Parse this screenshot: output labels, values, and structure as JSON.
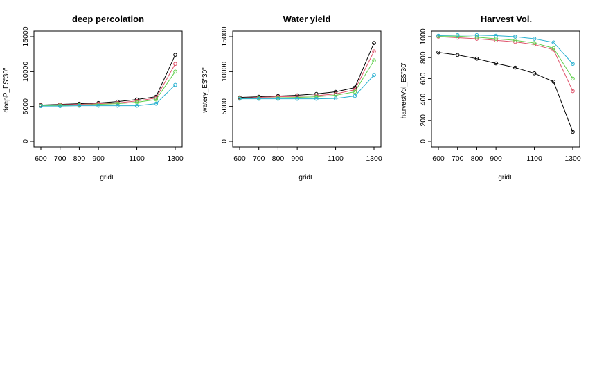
{
  "chart_data": [
    {
      "type": "line",
      "title": "deep percolation",
      "xlabel": "gridE",
      "ylabel": "deepP_E$\"30\"",
      "x": [
        600,
        700,
        800,
        900,
        1000,
        1100,
        1200,
        1300
      ],
      "x_ticks": [
        "600",
        "700",
        "800",
        "900",
        "1100",
        "1300"
      ],
      "y_ticks": [
        "0",
        "5000",
        "10000",
        "15000"
      ],
      "xlim": [
        600,
        1300
      ],
      "ylim": [
        0,
        15000
      ],
      "series": [
        {
          "color": "#000000",
          "values": [
            5200,
            5300,
            5400,
            5500,
            5700,
            6000,
            6400,
            12400
          ]
        },
        {
          "color": "#DF536B",
          "values": [
            5150,
            5250,
            5300,
            5400,
            5500,
            5800,
            6200,
            11100
          ]
        },
        {
          "color": "#61D04F",
          "values": [
            5100,
            5150,
            5200,
            5300,
            5400,
            5600,
            6000,
            10000
          ]
        },
        {
          "color": "#28B0D0",
          "values": [
            5050,
            5050,
            5100,
            5100,
            5100,
            5100,
            5400,
            8100
          ]
        }
      ]
    },
    {
      "type": "line",
      "title": "Water yield",
      "xlabel": "gridE",
      "ylabel": "watery_E$\"30\"",
      "x": [
        600,
        700,
        800,
        900,
        1000,
        1100,
        1200,
        1300
      ],
      "x_ticks": [
        "600",
        "700",
        "800",
        "900",
        "1100",
        "1300"
      ],
      "y_ticks": [
        "0",
        "5000",
        "10000",
        "15000"
      ],
      "xlim": [
        600,
        1300
      ],
      "ylim": [
        0,
        15000
      ],
      "series": [
        {
          "color": "#000000",
          "values": [
            6300,
            6400,
            6500,
            6600,
            6800,
            7100,
            7700,
            14100
          ]
        },
        {
          "color": "#DF536B",
          "values": [
            6200,
            6300,
            6400,
            6450,
            6550,
            6800,
            7400,
            12900
          ]
        },
        {
          "color": "#61D04F",
          "values": [
            6150,
            6200,
            6250,
            6300,
            6400,
            6600,
            7100,
            11600
          ]
        },
        {
          "color": "#28B0D0",
          "values": [
            6100,
            6100,
            6100,
            6100,
            6100,
            6150,
            6500,
            9500
          ]
        }
      ]
    },
    {
      "type": "line",
      "title": "Harvest Vol.",
      "xlabel": "gridE",
      "ylabel": "harvestVol_E$\"30\"",
      "x": [
        600,
        700,
        800,
        900,
        1000,
        1100,
        1200,
        1300
      ],
      "x_ticks": [
        "600",
        "700",
        "800",
        "900",
        "1100",
        "1300"
      ],
      "y_ticks": [
        "0",
        "200",
        "400",
        "600",
        "800",
        "1000"
      ],
      "xlim": [
        600,
        1300
      ],
      "ylim": [
        0,
        1000
      ],
      "series": [
        {
          "color": "#000000",
          "values": [
            850,
            825,
            790,
            745,
            705,
            650,
            570,
            90
          ]
        },
        {
          "color": "#DF536B",
          "values": [
            1000,
            990,
            980,
            965,
            950,
            925,
            875,
            480
          ]
        },
        {
          "color": "#61D04F",
          "values": [
            1005,
            1005,
            995,
            980,
            965,
            940,
            890,
            600
          ]
        },
        {
          "color": "#28B0D0",
          "values": [
            1010,
            1015,
            1015,
            1010,
            1000,
            980,
            945,
            740
          ]
        }
      ]
    }
  ]
}
